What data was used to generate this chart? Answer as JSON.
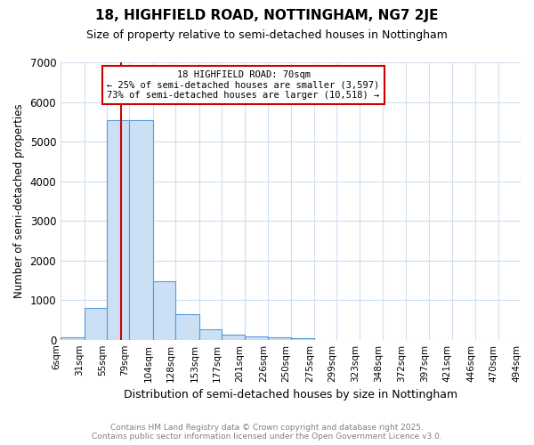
{
  "title": "18, HIGHFIELD ROAD, NOTTINGHAM, NG7 2JE",
  "subtitle": "Size of property relative to semi-detached houses in Nottingham",
  "xlabel": "Distribution of semi-detached houses by size in Nottingham",
  "ylabel": "Number of semi-detached properties",
  "bin_edges": [
    6,
    31,
    55,
    79,
    104,
    128,
    153,
    177,
    201,
    226,
    250,
    275,
    299,
    323,
    348,
    372,
    397,
    421,
    446,
    470,
    494
  ],
  "bar_heights": [
    50,
    800,
    5550,
    5550,
    1480,
    650,
    260,
    120,
    90,
    60,
    45,
    0,
    0,
    0,
    0,
    0,
    0,
    0,
    0,
    0
  ],
  "bar_color": "#cce0f5",
  "bar_edge_color": "#5599dd",
  "property_size": 70,
  "property_label": "18 HIGHFIELD ROAD: 70sqm",
  "pct_smaller": 25,
  "pct_larger": 73,
  "n_smaller": 3597,
  "n_larger": 10518,
  "vline_color": "#cc0000",
  "annotation_box_edge_color": "#cc0000",
  "ylim": [
    0,
    7000
  ],
  "yticks": [
    0,
    1000,
    2000,
    3000,
    4000,
    5000,
    6000,
    7000
  ],
  "bg_color": "#ffffff",
  "grid_color": "#d0dff0",
  "footer_line1": "Contains HM Land Registry data © Crown copyright and database right 2025.",
  "footer_line2": "Contains public sector information licensed under the Open Government Licence v3.0."
}
